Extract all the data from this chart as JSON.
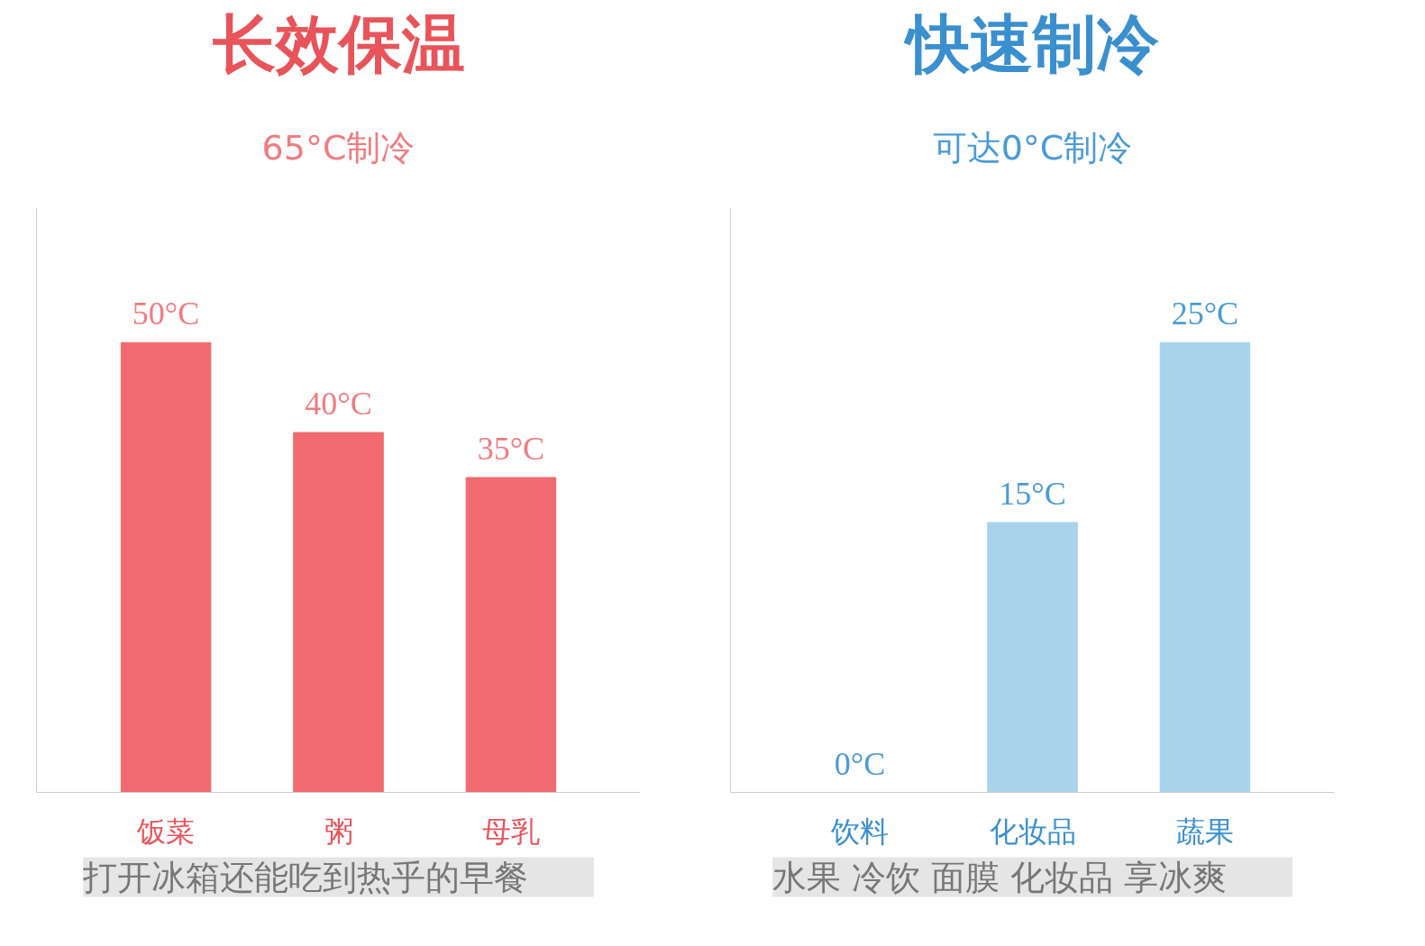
{
  "chart_data": [
    {
      "type": "bar",
      "title": "长效保温",
      "subtitle": "65°C制冷",
      "categories": [
        "饭菜",
        "粥",
        "母乳"
      ],
      "values": [
        50,
        40,
        35
      ],
      "value_labels": [
        "50°C",
        "40°C",
        "35°C"
      ],
      "tick_labels": "x",
      "color": "#f06a6f",
      "annotations": [
        "打开冰箱还能吃到热乎的早餐"
      ]
    },
    {
      "type": "bar",
      "title": "快速制冷",
      "subtitle": "可达0°C制冷",
      "categories": [
        "饮料",
        "化妆品",
        "蔬果"
      ],
      "values": [
        0,
        15,
        25
      ],
      "value_labels": [
        "0°C",
        "15°C",
        "25°C"
      ],
      "tick_labels": "x",
      "color": "#a9d3ec",
      "annotations": [
        "水果 冷饮 面膜 化妆品 享冰爽"
      ]
    }
  ]
}
